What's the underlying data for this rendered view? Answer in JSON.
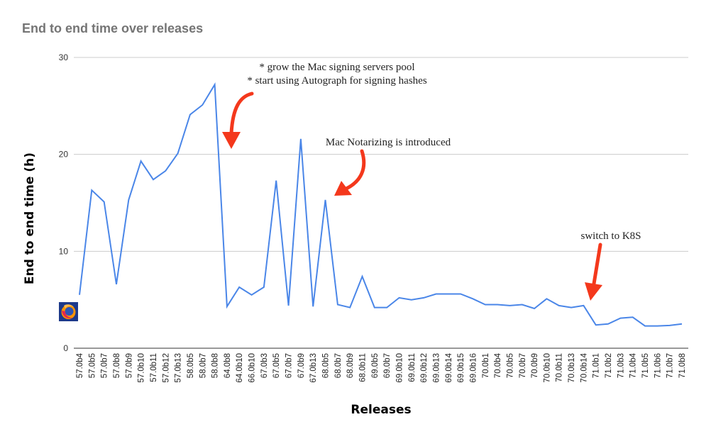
{
  "chart_data": {
    "type": "line",
    "title": "End to end time over releases",
    "xlabel": "Releases",
    "ylabel": "End to end time (h)",
    "ylim": [
      0,
      30
    ],
    "yticks": [
      0,
      10,
      20,
      30
    ],
    "grid": true,
    "categories": [
      "57.0b4",
      "57.0b5",
      "57.0b7",
      "57.0b8",
      "57.0b9",
      "57.0b10",
      "57.0b11",
      "57.0b12",
      "57.0b13",
      "58.0b5",
      "58.0b7",
      "58.0b8",
      "64.0b8",
      "64.0b10",
      "66.0b10",
      "67.0b3",
      "67.0b5",
      "67.0b7",
      "67.0b9",
      "67.0b13",
      "68.0b5",
      "68.0b7",
      "68.0b9",
      "68.0b11",
      "69.0b5",
      "69.0b7",
      "69.0b10",
      "69.0b11",
      "69.0b12",
      "69.0b13",
      "69.0b14",
      "69.0b15",
      "69.0b16",
      "70.0b1",
      "70.0b4",
      "70.0b5",
      "70.0b7",
      "70.0b9",
      "70.0b10",
      "70.0b11",
      "70.0b13",
      "70.0b14",
      "71.0b1",
      "71.0b2",
      "71.0b3",
      "71.0b4",
      "71.0b5",
      "71.0b6",
      "71.0b7",
      "71.0b8"
    ],
    "series": [
      {
        "color": "#4a86e8",
        "values": [
          5.5,
          16.3,
          15.1,
          6.6,
          15.3,
          19.3,
          17.4,
          18.3,
          20.1,
          24.1,
          25.1,
          27.2,
          4.3,
          6.3,
          5.5,
          6.3,
          17.3,
          4.4,
          21.6,
          4.3,
          15.3,
          4.5,
          4.2,
          7.4,
          4.2,
          4.2,
          5.2,
          5.0,
          5.2,
          5.6,
          5.6,
          5.6,
          5.1,
          4.5,
          4.5,
          4.4,
          4.5,
          4.1,
          5.1,
          4.4,
          4.2,
          4.4,
          2.4,
          2.5,
          3.1,
          3.2,
          2.3,
          2.3,
          2.35,
          2.5
        ]
      }
    ],
    "annotations": [
      {
        "lines": [
          "* grow the Mac signing servers pool",
          "* start using Autograph for signing hashes"
        ],
        "arrow_color": "#f4381c"
      },
      {
        "lines": [
          "Mac Notarizing is introduced"
        ],
        "arrow_color": "#f4381c"
      },
      {
        "lines": [
          "switch to K8S"
        ],
        "arrow_color": "#f4381c"
      }
    ],
    "logo": "firefox-logo"
  }
}
